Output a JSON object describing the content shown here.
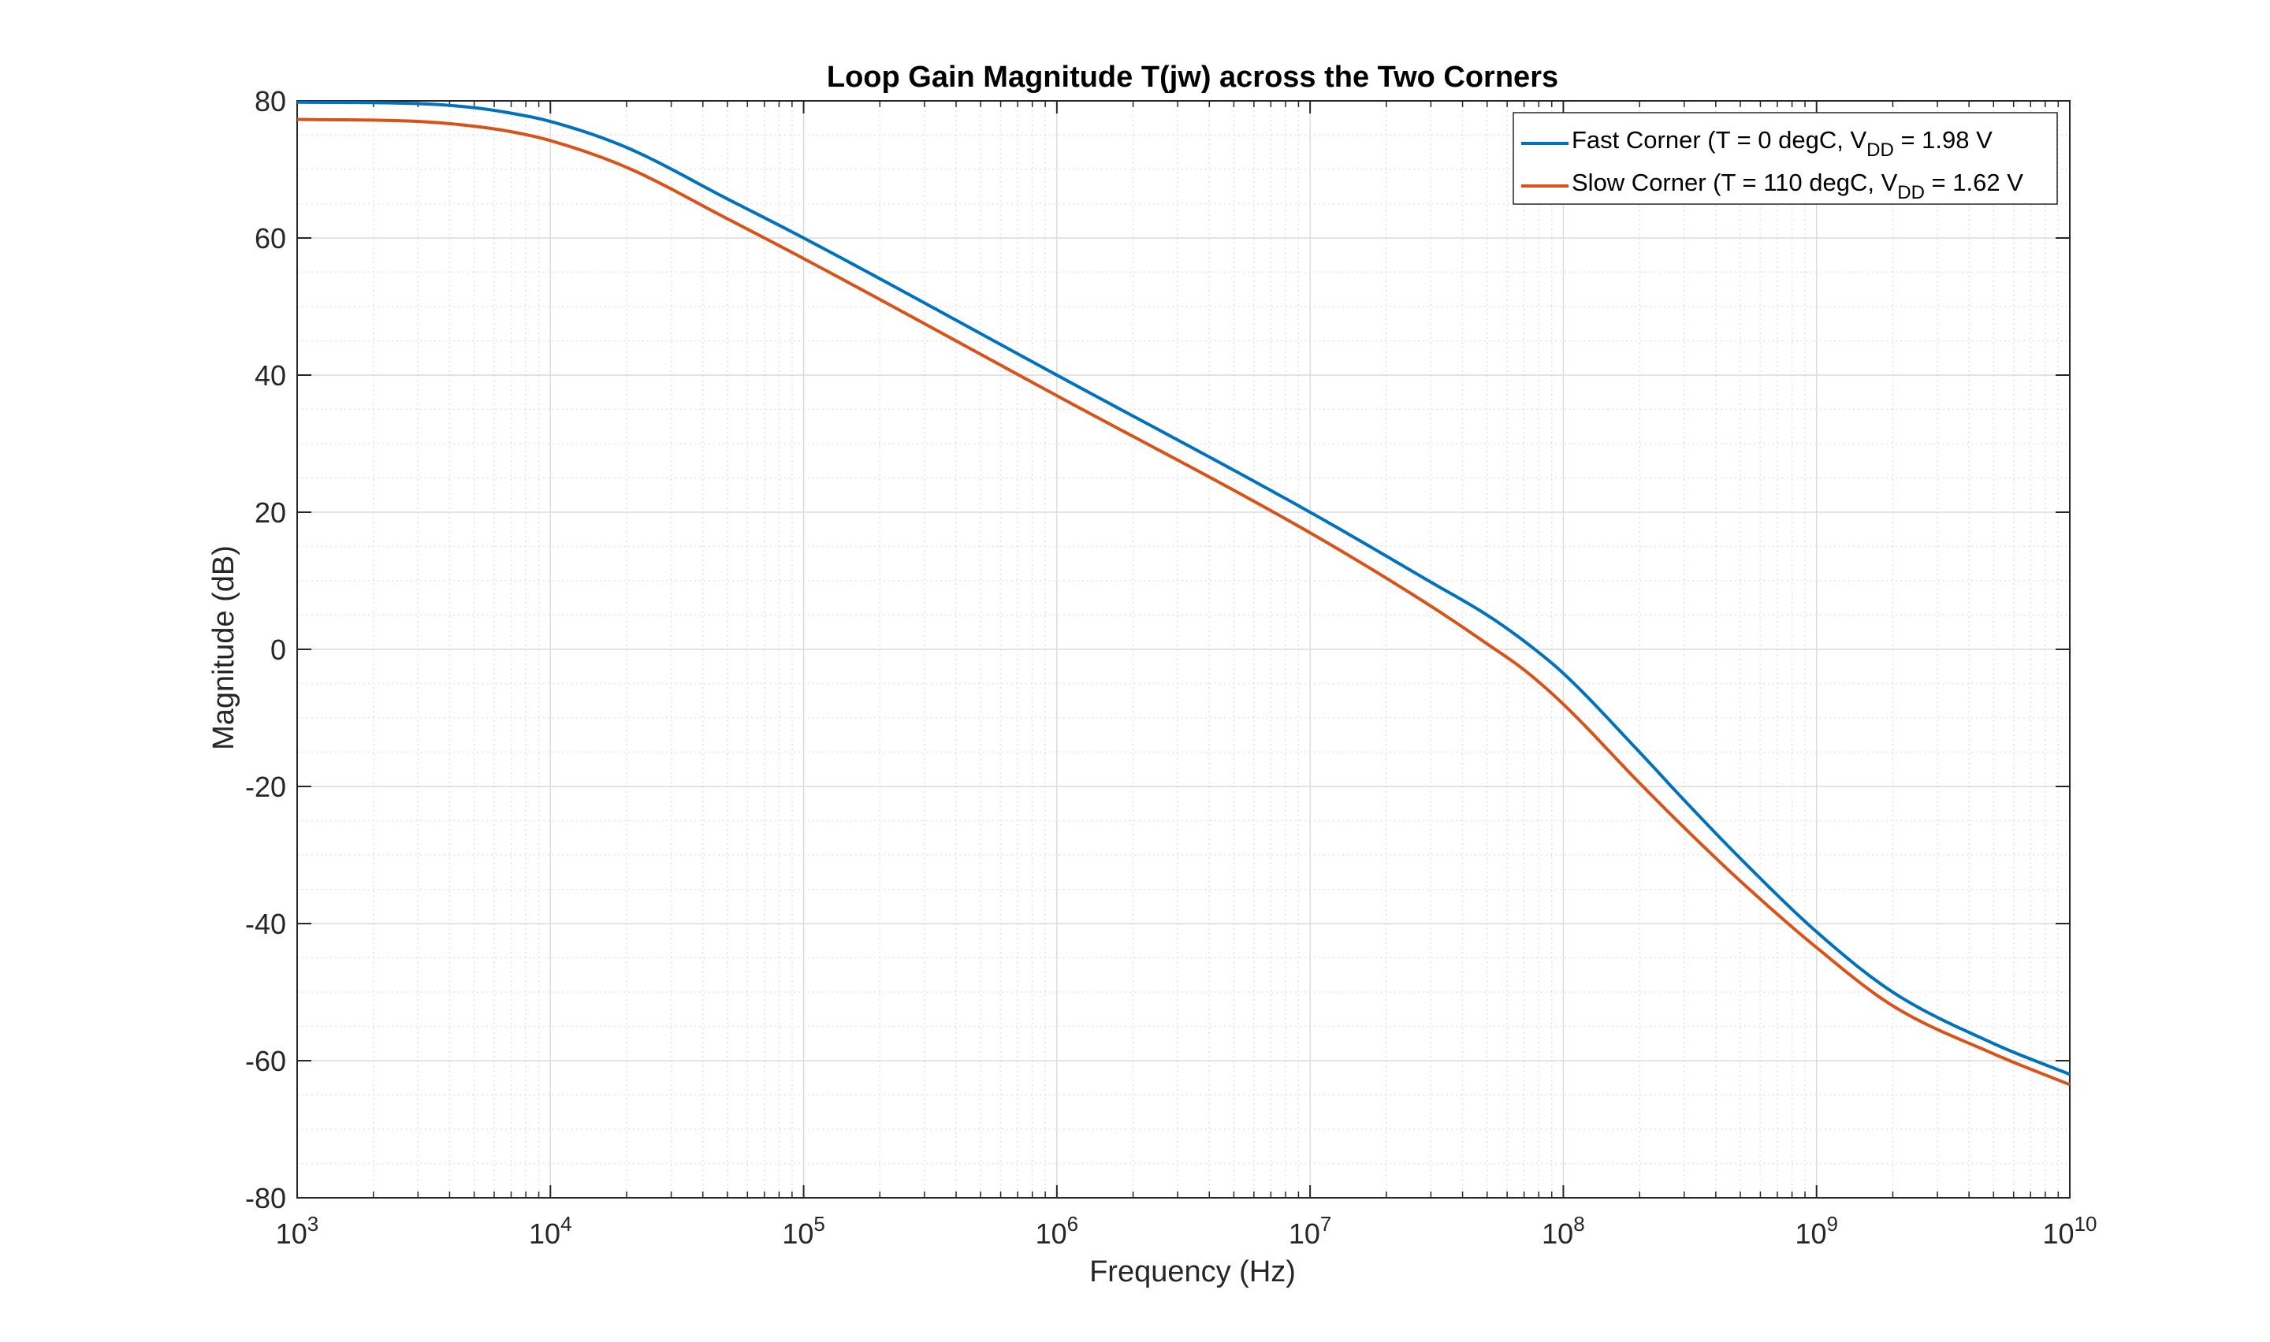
{
  "chart_data": {
    "type": "line",
    "title": "Loop Gain Magnitude T(jw) across the Two Corners",
    "xlabel": "Frequency (Hz)",
    "ylabel": "Magnitude (dB)",
    "x_scale": "log",
    "xlim": [
      1000,
      10000000000
    ],
    "ylim": [
      -80,
      80
    ],
    "x_ticks": [
      {
        "value": 1000,
        "base": "10",
        "exp": "3"
      },
      {
        "value": 10000,
        "base": "10",
        "exp": "4"
      },
      {
        "value": 100000,
        "base": "10",
        "exp": "5"
      },
      {
        "value": 1000000,
        "base": "10",
        "exp": "6"
      },
      {
        "value": 10000000,
        "base": "10",
        "exp": "7"
      },
      {
        "value": 100000000,
        "base": "10",
        "exp": "8"
      },
      {
        "value": 1000000000,
        "base": "10",
        "exp": "9"
      },
      {
        "value": 10000000000,
        "base": "10",
        "exp": "10"
      }
    ],
    "y_ticks": [
      {
        "value": 80,
        "label": "80"
      },
      {
        "value": 60,
        "label": "60"
      },
      {
        "value": 40,
        "label": "40"
      },
      {
        "value": 20,
        "label": "20"
      },
      {
        "value": 0,
        "label": "0"
      },
      {
        "value": -20,
        "label": "-20"
      },
      {
        "value": -40,
        "label": "-40"
      },
      {
        "value": -60,
        "label": "-60"
      },
      {
        "value": -80,
        "label": "-80"
      }
    ],
    "grid": true,
    "minor_grid": true,
    "legend_position": "top-right",
    "series": [
      {
        "name_parts": [
          "Fast Corner (T = 0 degC, V",
          "DD",
          " = 1.98 V"
        ],
        "color": "#0072BD",
        "x": [
          1000,
          3000,
          5000,
          7000,
          10000,
          20000,
          50000,
          100000,
          1000000,
          10000000,
          30000000,
          50000000,
          70000000,
          100000000,
          200000000,
          300000000,
          500000000,
          1000000000,
          2000000000,
          5000000000,
          10000000000
        ],
        "y": [
          79.8,
          79.6,
          79.0,
          78.2,
          77.0,
          73.2,
          65.7,
          60.0,
          40.0,
          20.0,
          9.8,
          5.0,
          1.2,
          -3.5,
          -15.0,
          -22.0,
          -30.5,
          -41.2,
          -50.0,
          -57.5,
          -62.0
        ]
      },
      {
        "name_parts": [
          "Slow Corner (T = 110 degC, V",
          "DD",
          " = 1.62 V"
        ],
        "color": "#D95319",
        "x": [
          1000,
          3000,
          5000,
          7000,
          10000,
          20000,
          50000,
          100000,
          1000000,
          10000000,
          30000000,
          50000000,
          70000000,
          100000000,
          200000000,
          300000000,
          500000000,
          1000000000,
          2000000000,
          5000000000,
          10000000000
        ],
        "y": [
          77.3,
          77.0,
          76.3,
          75.5,
          74.2,
          70.3,
          62.8,
          57.0,
          37.0,
          17.0,
          6.3,
          0.8,
          -3.0,
          -8.0,
          -19.5,
          -26.0,
          -33.8,
          -43.5,
          -52.0,
          -59.0,
          -63.5
        ]
      }
    ]
  }
}
